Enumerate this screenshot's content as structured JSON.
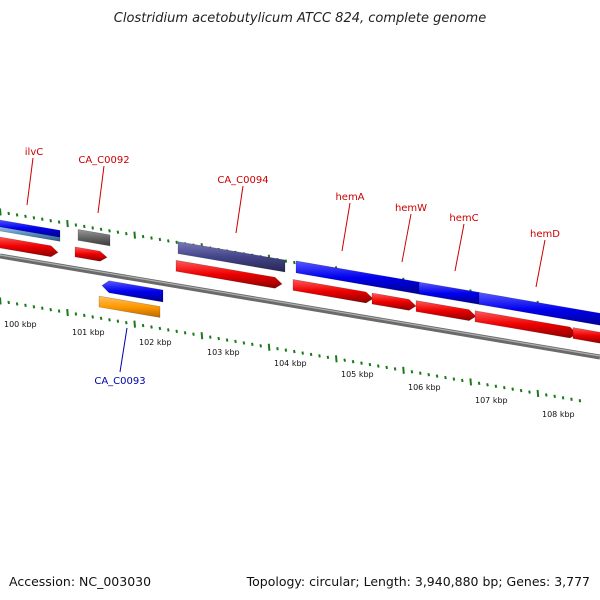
{
  "title": "Clostridium acetobutylicum ATCC 824, complete genome",
  "footer": {
    "accession": "Accession: NC_003030",
    "topology": "Topology: circular; Length: 3,940,880 bp; Genes: 3,777"
  },
  "colors": {
    "label_red": "#cc0000",
    "label_blue": "#0000aa",
    "tick_green": "#1a7a1a",
    "backbone": "#888888",
    "gene_blue": "#0000ee",
    "gene_red": "#ee0000",
    "gene_gray": "#666666",
    "gene_purple": "#44448a",
    "gene_orange": "#ff9900",
    "gene_lightblue": "#5a8fbf"
  },
  "kbp_labels": [
    "100 kbp",
    "101 kbp",
    "102 kbp",
    "103 kbp",
    "104 kbp",
    "105 kbp",
    "106 kbp",
    "107 kbp",
    "108 kbp"
  ],
  "gene_labels": {
    "ilvC": "ilvC",
    "CA_C0092": "CA_C0092",
    "CA_C0093": "CA_C0093",
    "CA_C0094": "CA_C0094",
    "hemA": "hemA",
    "hemW": "hemW",
    "hemC": "hemC",
    "hemD": "hemD"
  }
}
